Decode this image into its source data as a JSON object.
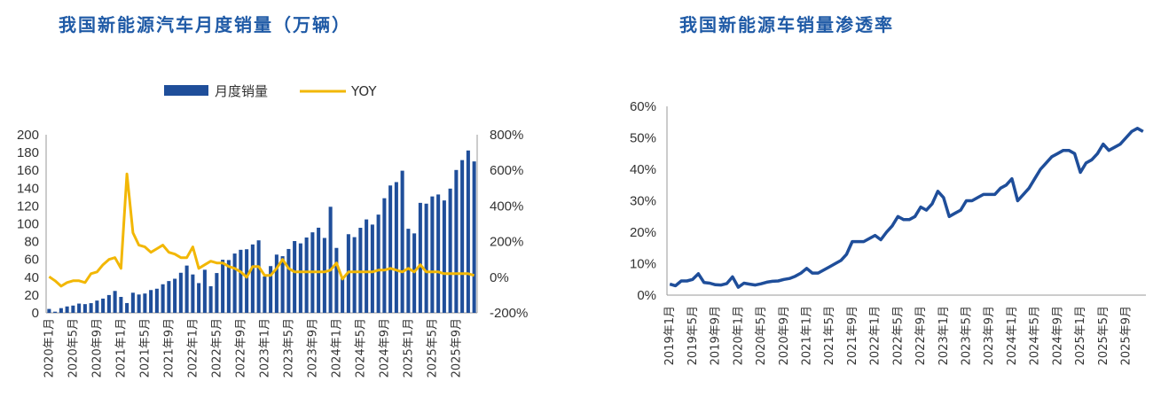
{
  "colors": {
    "title": "#1f5aa6",
    "bar": "#1f4e9a",
    "yoy": "#f2b705",
    "line": "#1f4e9a",
    "axis": "#9a9a9a"
  },
  "chart_data": [
    {
      "type": "bar",
      "title": "我国新能源汽车月度销量（万辆）",
      "legend": {
        "placement": "top",
        "entries": [
          "月度销量",
          "YOY"
        ]
      },
      "ylim": [
        0,
        200
      ],
      "yticks": [
        "0",
        "20",
        "40",
        "60",
        "80",
        "100",
        "120",
        "140",
        "160",
        "180",
        "200"
      ],
      "y2lim": [
        -200,
        800
      ],
      "y2ticks": [
        "-200%",
        "0%",
        "200%",
        "400%",
        "600%",
        "800%"
      ],
      "xticks": [
        "2020年1月",
        "2020年5月",
        "2020年9月",
        "2021年1月",
        "2021年5月",
        "2021年9月",
        "2022年1月",
        "2022年5月",
        "2022年9月",
        "2023年1月",
        "2023年5月",
        "2023年9月",
        "2024年1月",
        "2024年5月",
        "2024年9月",
        "2025年1月",
        "2025年5月",
        "2025年9月"
      ],
      "series": [
        {
          "name": "月度销量",
          "type": "bar",
          "axis": "left",
          "values": [
            4.4,
            1.3,
            5.3,
            7.2,
            8.2,
            10.4,
            9.8,
            10.9,
            13.8,
            16,
            20,
            24.6,
            17.9,
            11,
            22.6,
            20.6,
            21.7,
            25.6,
            27.1,
            32.1,
            35.7,
            38.3,
            45,
            53.1,
            43.1,
            33.4,
            48.4,
            29.9,
            44.7,
            59.6,
            59.3,
            66.6,
            70.8,
            71.4,
            76.8,
            81.4,
            40.8,
            52.5,
            65.4,
            63.6,
            71.7,
            80.6,
            78,
            84.6,
            90.4,
            95.6,
            84.1,
            119.1,
            72.9,
            38.8,
            88.3,
            85,
            95.5,
            104.9,
            99.1,
            110.3,
            128.7,
            143,
            146.8,
            159.6,
            94.4,
            89.2,
            123.5,
            122.6,
            130.7,
            132.9,
            126.2,
            139.5,
            160.4,
            171.5,
            182.3,
            170
          ]
        },
        {
          "name": "YOY",
          "type": "line",
          "axis": "right",
          "values": [
            3,
            -20,
            -50,
            -30,
            -20,
            -20,
            -30,
            20,
            30,
            70,
            100,
            110,
            50,
            580,
            250,
            180,
            170,
            140,
            160,
            180,
            140,
            130,
            110,
            110,
            170,
            50,
            70,
            90,
            80,
            80,
            60,
            50,
            30,
            0,
            60,
            60,
            10,
            10,
            50,
            100,
            50,
            30,
            30,
            30,
            30,
            30,
            30,
            40,
            80,
            -10,
            30,
            30,
            30,
            30,
            30,
            40,
            40,
            50,
            40,
            30,
            50,
            30,
            70,
            30,
            30,
            30,
            20,
            20,
            20,
            20,
            20,
            10
          ]
        }
      ]
    },
    {
      "type": "line",
      "title": "我国新能源车销量渗透率",
      "ylim": [
        0,
        60
      ],
      "yticks": [
        "0%",
        "10%",
        "20%",
        "30%",
        "40%",
        "50%",
        "60%"
      ],
      "xticks": [
        "2019年1月",
        "2019年5月",
        "2019年9月",
        "2020年1月",
        "2020年5月",
        "2020年9月",
        "2021年1月",
        "2021年5月",
        "2021年9月",
        "2022年1月",
        "2022年5月",
        "2022年9月",
        "2023年1月",
        "2023年5月",
        "2023年9月",
        "2024年1月",
        "2024年5月",
        "2024年9月",
        "2025年1月",
        "2025年5月",
        "2025年9月"
      ],
      "series": [
        {
          "name": "渗透率",
          "values": [
            3.5,
            3,
            4.5,
            4.5,
            5,
            6.8,
            4,
            3.8,
            3.3,
            3.2,
            3.7,
            5.8,
            2.5,
            3.8,
            3.5,
            3.2,
            3.6,
            4.1,
            4.4,
            4.5,
            5,
            5.3,
            6,
            7,
            8.5,
            7,
            7,
            8,
            9,
            10,
            11,
            13,
            17,
            17,
            17,
            18,
            19,
            17.6,
            20,
            22,
            25,
            24,
            24,
            25,
            28,
            27,
            29,
            33,
            31,
            25,
            26,
            27,
            30,
            30,
            31,
            32,
            32,
            32,
            34,
            35,
            37,
            30,
            32,
            34,
            37,
            40,
            42,
            44,
            45,
            46,
            46,
            45,
            39,
            42,
            43,
            45,
            48,
            46,
            47,
            48,
            50,
            52,
            53,
            52
          ]
        }
      ]
    }
  ]
}
